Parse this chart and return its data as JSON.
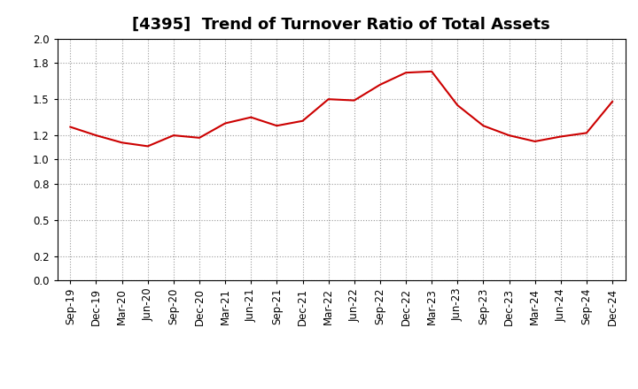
{
  "title": "[4395]  Trend of Turnover Ratio of Total Assets",
  "x_labels": [
    "Sep-19",
    "Dec-19",
    "Mar-20",
    "Jun-20",
    "Sep-20",
    "Dec-20",
    "Mar-21",
    "Jun-21",
    "Sep-21",
    "Dec-21",
    "Mar-22",
    "Jun-22",
    "Sep-22",
    "Dec-22",
    "Mar-23",
    "Jun-23",
    "Sep-23",
    "Dec-23",
    "Mar-24",
    "Jun-24",
    "Sep-24",
    "Dec-24"
  ],
  "y_values": [
    1.27,
    1.2,
    1.14,
    1.11,
    1.2,
    1.18,
    1.3,
    1.35,
    1.28,
    1.32,
    1.5,
    1.49,
    1.62,
    1.72,
    1.73,
    1.45,
    1.28,
    1.2,
    1.15,
    1.19,
    1.22,
    1.48
  ],
  "line_color": "#cc0000",
  "background_color": "#ffffff",
  "grid_color": "#999999",
  "ylim": [
    0.0,
    2.0
  ],
  "yticks": [
    0.0,
    0.2,
    0.5,
    0.8,
    1.0,
    1.2,
    1.5,
    1.8,
    2.0
  ],
  "title_fontsize": 13,
  "tick_fontsize": 8.5
}
